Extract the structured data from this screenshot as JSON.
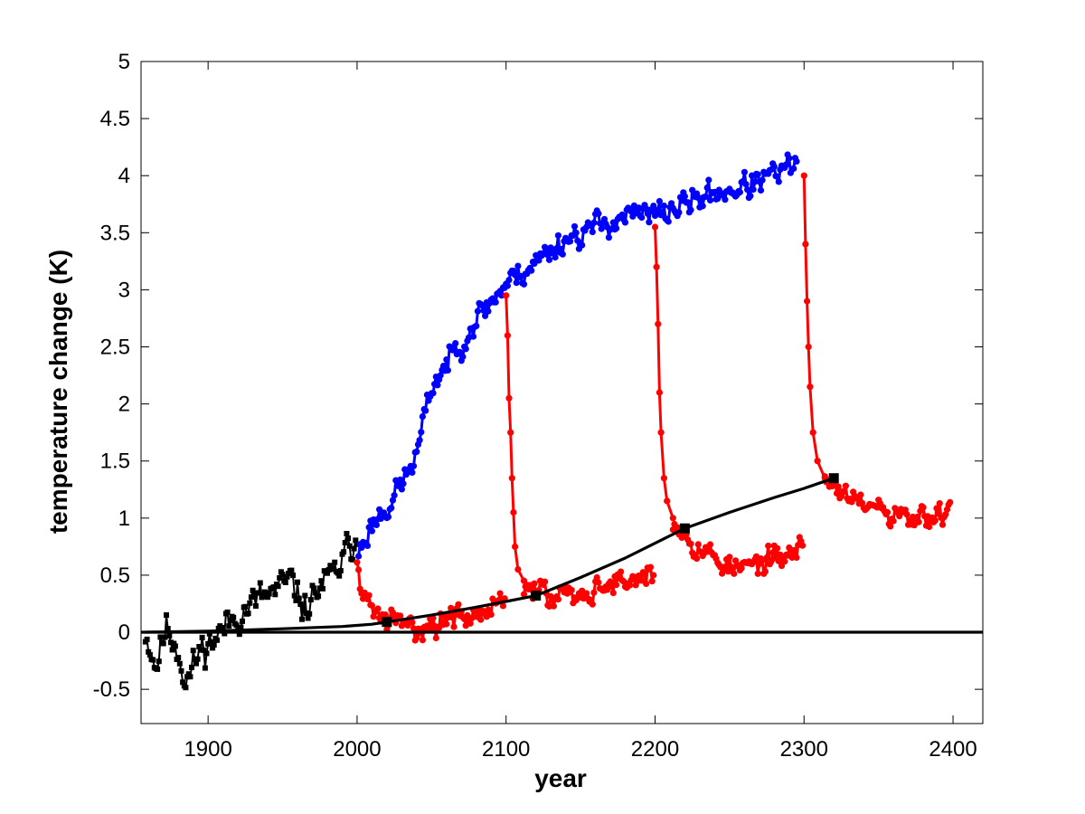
{
  "chart_data": {
    "type": "line",
    "title": "",
    "xlabel": "year",
    "ylabel": "temperature change (K)",
    "xlim": [
      1855,
      2420
    ],
    "ylim": [
      -0.8,
      5
    ],
    "x_ticks": [
      1900,
      2000,
      2100,
      2200,
      2300,
      2400
    ],
    "y_ticks": [
      -0.5,
      0,
      0.5,
      1,
      1.5,
      2,
      2.5,
      3,
      3.5,
      4,
      4.5,
      5
    ],
    "x_tick_labels": [
      "1900",
      "2000",
      "2100",
      "2200",
      "2300",
      "2400"
    ],
    "y_tick_labels": [
      "-0.5",
      "0",
      "0.5",
      "1",
      "1.5",
      "2",
      "2.5",
      "3",
      "3.5",
      "4",
      "4.5",
      "5"
    ],
    "grid": false,
    "legend": "none",
    "series": [
      {
        "color": "#000000",
        "style": "noisy",
        "marker": "square",
        "anchors": [
          [
            1858,
            0.0
          ],
          [
            1865,
            -0.3
          ],
          [
            1872,
            0.05
          ],
          [
            1880,
            -0.15
          ],
          [
            1885,
            -0.45
          ],
          [
            1895,
            -0.15
          ],
          [
            1905,
            -0.05
          ],
          [
            1915,
            0.1
          ],
          [
            1925,
            0.2
          ],
          [
            1935,
            0.3
          ],
          [
            1945,
            0.35
          ],
          [
            1955,
            0.45
          ],
          [
            1965,
            0.2
          ],
          [
            1975,
            0.4
          ],
          [
            1985,
            0.5
          ],
          [
            1995,
            0.75
          ],
          [
            2000,
            0.85
          ]
        ],
        "noise": 0.15,
        "seed": 11
      },
      {
        "color": "#0000ff",
        "style": "noisy",
        "marker": "circle",
        "anchors": [
          [
            2001,
            0.7
          ],
          [
            2010,
            0.95
          ],
          [
            2020,
            1.1
          ],
          [
            2030,
            1.3
          ],
          [
            2040,
            1.55
          ],
          [
            2050,
            2.15
          ],
          [
            2060,
            2.35
          ],
          [
            2070,
            2.55
          ],
          [
            2080,
            2.75
          ],
          [
            2090,
            2.9
          ],
          [
            2100,
            3.05
          ],
          [
            2120,
            3.25
          ],
          [
            2140,
            3.45
          ],
          [
            2160,
            3.55
          ],
          [
            2180,
            3.65
          ],
          [
            2200,
            3.65
          ],
          [
            2220,
            3.75
          ],
          [
            2240,
            3.85
          ],
          [
            2260,
            3.9
          ],
          [
            2280,
            4.0
          ],
          [
            2295,
            4.1
          ]
        ],
        "noise": 0.12,
        "seed": 23
      },
      {
        "color": "#ff0000",
        "style": "noisy",
        "marker": "circle",
        "anchors": [
          [
            2000,
            0.72
          ],
          [
            2003,
            0.3
          ],
          [
            2020,
            0.1
          ],
          [
            2040,
            0.05
          ],
          [
            2060,
            0.1
          ],
          [
            2080,
            0.15
          ],
          [
            2090,
            0.25
          ],
          [
            2099,
            0.3
          ]
        ],
        "noise": 0.11,
        "seed": 31
      },
      {
        "color": "#ff0000",
        "style": "decay",
        "marker": "circle",
        "points": [
          [
            2100,
            2.95
          ],
          [
            2101,
            2.6
          ],
          [
            2102,
            2.05
          ],
          [
            2103,
            1.75
          ],
          [
            2104,
            1.35
          ],
          [
            2105,
            1.05
          ],
          [
            2106,
            0.75
          ],
          [
            2108,
            0.55
          ],
          [
            2112,
            0.45
          ]
        ]
      },
      {
        "color": "#ff0000",
        "style": "noisy",
        "marker": "circle",
        "anchors": [
          [
            2112,
            0.4
          ],
          [
            2130,
            0.3
          ],
          [
            2150,
            0.35
          ],
          [
            2170,
            0.42
          ],
          [
            2190,
            0.48
          ],
          [
            2199,
            0.45
          ]
        ],
        "noise": 0.11,
        "seed": 47
      },
      {
        "color": "#ff0000",
        "style": "decay",
        "marker": "circle",
        "points": [
          [
            2200,
            3.55
          ],
          [
            2201,
            3.2
          ],
          [
            2202,
            2.7
          ],
          [
            2203,
            2.1
          ],
          [
            2204,
            1.75
          ],
          [
            2206,
            1.35
          ],
          [
            2208,
            1.15
          ],
          [
            2212,
            1.0
          ]
        ]
      },
      {
        "color": "#ff0000",
        "style": "noisy",
        "marker": "circle",
        "anchors": [
          [
            2212,
            1.0
          ],
          [
            2225,
            0.8
          ],
          [
            2240,
            0.65
          ],
          [
            2255,
            0.55
          ],
          [
            2270,
            0.6
          ],
          [
            2285,
            0.65
          ],
          [
            2299,
            0.75
          ]
        ],
        "noise": 0.11,
        "seed": 53
      },
      {
        "color": "#ff0000",
        "style": "decay",
        "marker": "circle",
        "points": [
          [
            2300,
            4.0
          ],
          [
            2301,
            3.4
          ],
          [
            2302,
            2.9
          ],
          [
            2303,
            2.5
          ],
          [
            2304,
            2.15
          ],
          [
            2306,
            1.75
          ],
          [
            2309,
            1.5
          ],
          [
            2314,
            1.35
          ]
        ]
      },
      {
        "color": "#ff0000",
        "style": "noisy",
        "marker": "circle",
        "anchors": [
          [
            2314,
            1.35
          ],
          [
            2330,
            1.15
          ],
          [
            2345,
            1.1
          ],
          [
            2360,
            1.0
          ],
          [
            2375,
            0.98
          ],
          [
            2390,
            1.0
          ],
          [
            2398,
            1.1
          ]
        ],
        "noise": 0.11,
        "seed": 61
      },
      {
        "color": "#000000",
        "style": "smooth",
        "marker": "square",
        "points": [
          [
            1858,
            0.0
          ],
          [
            1900,
            0.01
          ],
          [
            1950,
            0.03
          ],
          [
            1990,
            0.05
          ],
          [
            2010,
            0.07
          ],
          [
            2020,
            0.09
          ],
          [
            2050,
            0.15
          ],
          [
            2080,
            0.22
          ],
          [
            2100,
            0.27
          ],
          [
            2120,
            0.32
          ],
          [
            2150,
            0.48
          ],
          [
            2180,
            0.65
          ],
          [
            2200,
            0.78
          ],
          [
            2220,
            0.91
          ],
          [
            2250,
            1.05
          ],
          [
            2280,
            1.18
          ],
          [
            2300,
            1.26
          ],
          [
            2320,
            1.35
          ]
        ],
        "markers_at": [
          2020,
          2120,
          2220,
          2320
        ]
      },
      {
        "color": "#000000",
        "style": "flat",
        "marker": "none",
        "points": [
          [
            1855,
            0.0
          ],
          [
            2420,
            0.0
          ]
        ]
      }
    ]
  }
}
